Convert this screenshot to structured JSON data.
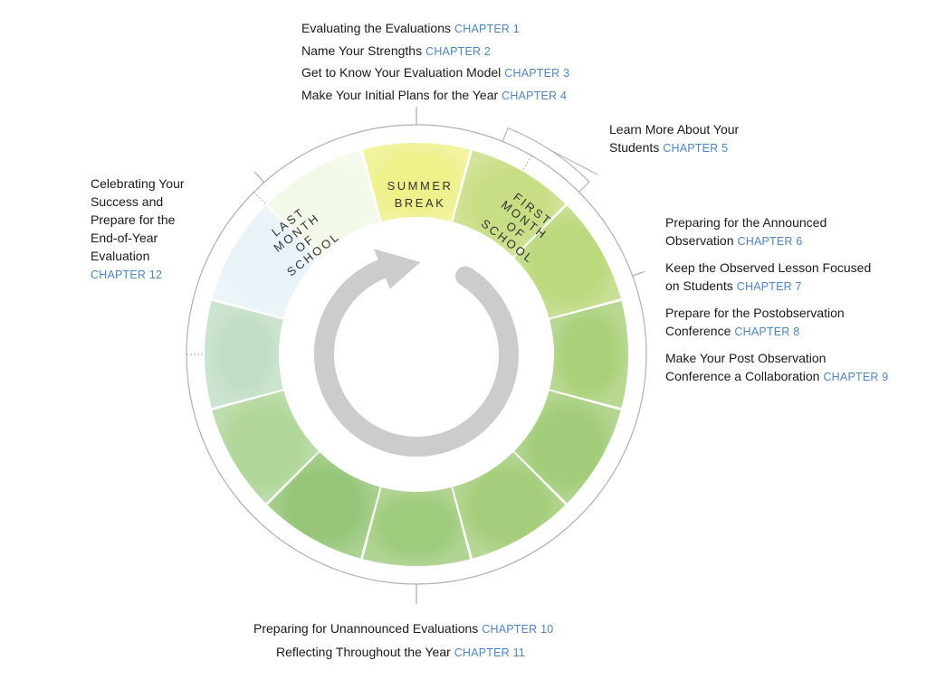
{
  "segments": [
    {
      "fill": "#eef08a",
      "label": [
        "SUMMER",
        "BREAK"
      ]
    },
    {
      "fill": "#c8de84",
      "label": [
        "FIRST",
        "MONTH",
        "OF",
        "SCHOOL"
      ]
    },
    {
      "fill": "#bcd97e",
      "label": []
    },
    {
      "fill": "#a9d07a",
      "label": []
    },
    {
      "fill": "#a3cd7a",
      "label": []
    },
    {
      "fill": "#a5ce7c",
      "label": []
    },
    {
      "fill": "#9fcb7c",
      "label": []
    },
    {
      "fill": "#97c67a",
      "label": []
    },
    {
      "fill": "#b0d69a",
      "label": []
    },
    {
      "fill": "#c2dfc6",
      "label": []
    },
    {
      "fill": "#e9f3f7",
      "label": []
    },
    {
      "fill": "#f3f9e8",
      "label": [
        "LAST",
        "MONTH",
        "OF",
        "SCHOOL"
      ]
    }
  ],
  "colors": {
    "chapter_text": "#4f86bf",
    "arrow": "#cccccc",
    "ring_line": "#b0b0b0"
  },
  "groups": {
    "top": {
      "items": [
        {
          "title": "Evaluating the Evaluations",
          "chapter": "CHAPTER 1"
        },
        {
          "title": "Name Your Strengths",
          "chapter": "CHAPTER 2"
        },
        {
          "title": "Get to Know Your Evaluation Model",
          "chapter": "CHAPTER 3"
        },
        {
          "title": "Make Your Initial Plans for the Year",
          "chapter": "CHAPTER 4"
        }
      ]
    },
    "ch5": {
      "line1": "Learn More About Your",
      "line2": "Students",
      "chapter": "CHAPTER 5"
    },
    "right": {
      "items": [
        {
          "line1": "Preparing for the Announced",
          "line2": "Observation",
          "chapter": "CHAPTER 6"
        },
        {
          "line1": "Keep the Observed Lesson Focused",
          "line2": "on Students",
          "chapter": "CHAPTER 7"
        },
        {
          "line1": "Prepare for the Postobservation",
          "line2": "Conference",
          "chapter": "CHAPTER 8"
        },
        {
          "line1": "Make Your Post Observation",
          "line2": "Conference a Collaboration",
          "chapter": "CHAPTER 9"
        }
      ]
    },
    "left": {
      "lines": [
        "Celebrating Your",
        "Success and",
        "Prepare for the",
        "End-of-Year",
        "Evaluation"
      ],
      "chapter": "CHAPTER 12"
    },
    "bottom": {
      "items": [
        {
          "title": "Preparing for Unannounced Evaluations",
          "chapter": "CHAPTER 10"
        },
        {
          "title": "Reflecting Throughout the Year",
          "chapter": "CHAPTER 11"
        }
      ]
    }
  }
}
